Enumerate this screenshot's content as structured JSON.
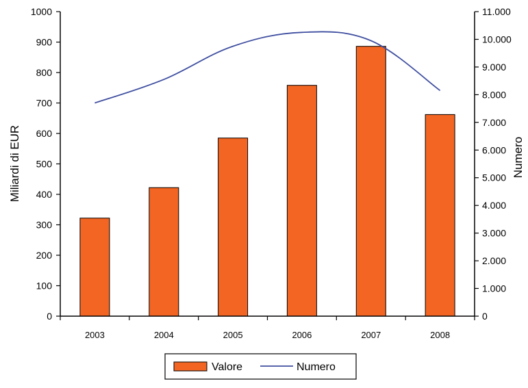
{
  "chart_data": {
    "type": "bar",
    "categories": [
      "2003",
      "2004",
      "2005",
      "2006",
      "2007",
      "2008"
    ],
    "series": [
      {
        "name": "Valore",
        "kind": "bar",
        "axis": "left",
        "color": "#f26522",
        "values": [
          322,
          422,
          585,
          758,
          886,
          662
        ]
      },
      {
        "name": "Numero",
        "kind": "line",
        "axis": "right",
        "color": "#3f4fa0",
        "values": [
          7700,
          8550,
          9750,
          10250,
          9950,
          8150
        ]
      }
    ],
    "ylabel": "Miliardi di EUR",
    "ylabel_right": "Numero",
    "ylim": [
      0,
      1000
    ],
    "ylim_right": [
      0,
      11000
    ],
    "yticks": [
      "0",
      "100",
      "200",
      "300",
      "400",
      "500",
      "600",
      "700",
      "800",
      "900",
      "1000"
    ],
    "yticks_right": [
      "0",
      "1.000",
      "2.000",
      "3.000",
      "4.000",
      "5.000",
      "6.000",
      "7.000",
      "8.000",
      "9.000",
      "10.000",
      "11.000"
    ],
    "grid": false,
    "legend": "bottom-center"
  }
}
